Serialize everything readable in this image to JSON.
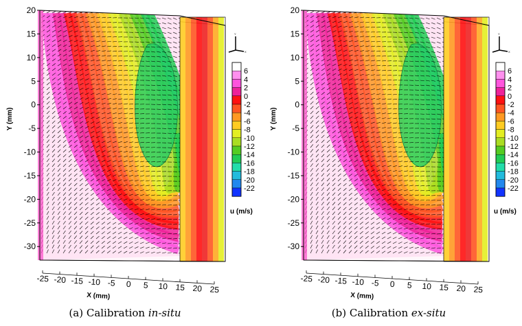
{
  "panels": [
    {
      "caption_prefix": "(a) Calibration ",
      "caption_method": "in-situ"
    },
    {
      "caption_prefix": "(b) Calibration ",
      "caption_method": "ex-situ"
    }
  ],
  "chart_data": [
    {
      "type": "3d-isosurface-vector-field",
      "title": "",
      "xlabel": "X (mm)",
      "ylabel": "Y (mm)",
      "x_ticks": [
        -25,
        -20,
        -15,
        -10,
        -5,
        0,
        5,
        10,
        15,
        20,
        25
      ],
      "y_ticks": [
        20,
        15,
        10,
        5,
        0,
        -5,
        -10,
        -15,
        -20,
        -25,
        -30
      ],
      "xlim": [
        -28,
        28
      ],
      "ylim": [
        -32,
        20
      ],
      "triad_labels": [
        "Y",
        "X"
      ],
      "colorbar": {
        "title": "u (m/s)",
        "levels": [
          6,
          4,
          2,
          0,
          -2,
          -4,
          -6,
          -8,
          -10,
          -12,
          -14,
          -16,
          -18,
          -20,
          -22
        ],
        "colors": [
          "#ffffff",
          "#ff90ee",
          "#ff55dd",
          "#ee2299",
          "#ff1111",
          "#ff5522",
          "#ff9922",
          "#ffcc22",
          "#e3ee22",
          "#aadd22",
          "#55cc22",
          "#22cc55",
          "#22ddaa",
          "#22bbdd",
          "#2288ee",
          "#1133ff"
        ]
      }
    },
    {
      "type": "3d-isosurface-vector-field",
      "title": "",
      "xlabel": "X (mm)",
      "ylabel": "Y (mm)",
      "x_ticks": [
        -25,
        -20,
        -15,
        -10,
        -5,
        0,
        5,
        10,
        15,
        20,
        25
      ],
      "y_ticks": [
        20,
        15,
        10,
        5,
        0,
        -5,
        -10,
        -15,
        -20,
        -25,
        -30
      ],
      "xlim": [
        -28,
        28
      ],
      "ylim": [
        -32,
        20
      ],
      "triad_labels": [
        "Y",
        "X"
      ],
      "colorbar": {
        "title": "u (m/s)",
        "levels": [
          6,
          4,
          2,
          0,
          -2,
          -4,
          -6,
          -8,
          -10,
          -12,
          -14,
          -16,
          -18,
          -20,
          -22
        ],
        "colors": [
          "#ffffff",
          "#ff90ee",
          "#ff55dd",
          "#ee2299",
          "#ff1111",
          "#ff5522",
          "#ff9922",
          "#ffcc22",
          "#e3ee22",
          "#aadd22",
          "#55cc22",
          "#22cc55",
          "#22ddaa",
          "#22bbdd",
          "#2288ee",
          "#1133ff"
        ]
      }
    }
  ]
}
